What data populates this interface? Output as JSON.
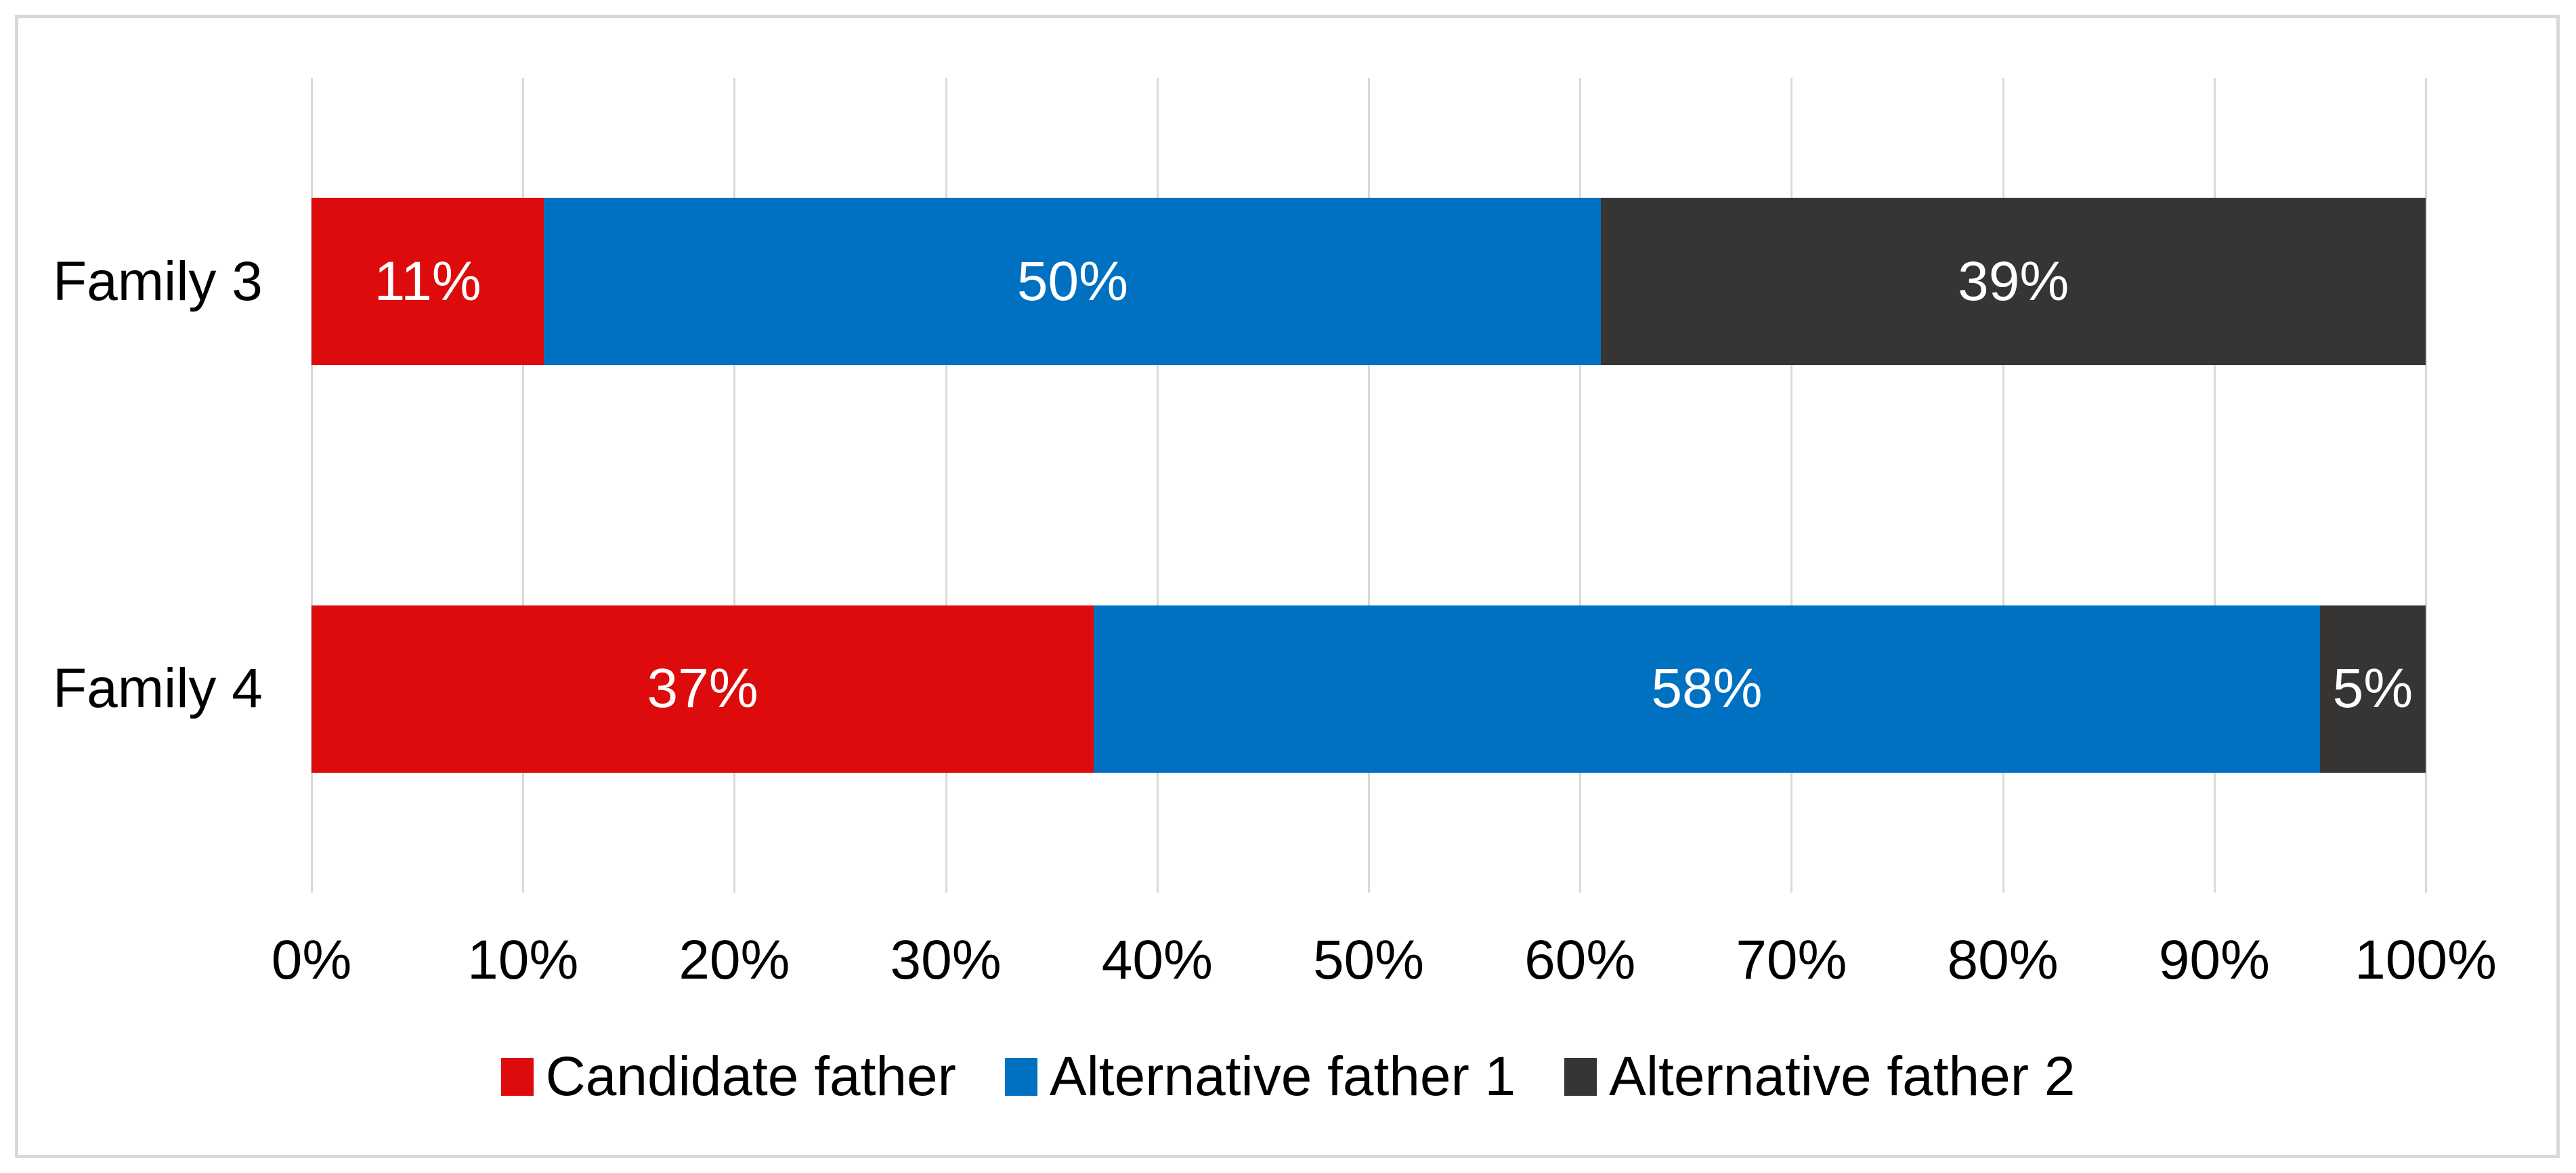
{
  "chart_data": {
    "type": "bar",
    "variant": "horizontal-stacked-100",
    "title": "",
    "categories": [
      "Family 3",
      "Family 4"
    ],
    "series": [
      {
        "name": "Candidate father",
        "color": "#DD0B0B",
        "values": [
          11,
          37
        ]
      },
      {
        "name": "Alternative father 1",
        "color": "#0070C0",
        "values": [
          50,
          58
        ]
      },
      {
        "name": "Alternative father 2",
        "color": "#373434",
        "values": [
          39,
          5
        ]
      }
    ],
    "data_labels": [
      [
        "11%",
        "50%",
        "39%"
      ],
      [
        "37%",
        "58%",
        "5%"
      ]
    ],
    "x_tick_labels": [
      "0%",
      "10%",
      "20%",
      "30%",
      "40%",
      "50%",
      "60%",
      "70%",
      "80%",
      "90%",
      "100%"
    ],
    "xlim": [
      0,
      100
    ],
    "grid": "vertical-major",
    "legend_position": "bottom"
  },
  "colors": {
    "background": "#FFFFFF",
    "frame_border": "#D8D8D8",
    "gridline": "#D9D9D9",
    "axis_text": "#000000",
    "bar_label_text": "#FFFFFF"
  }
}
